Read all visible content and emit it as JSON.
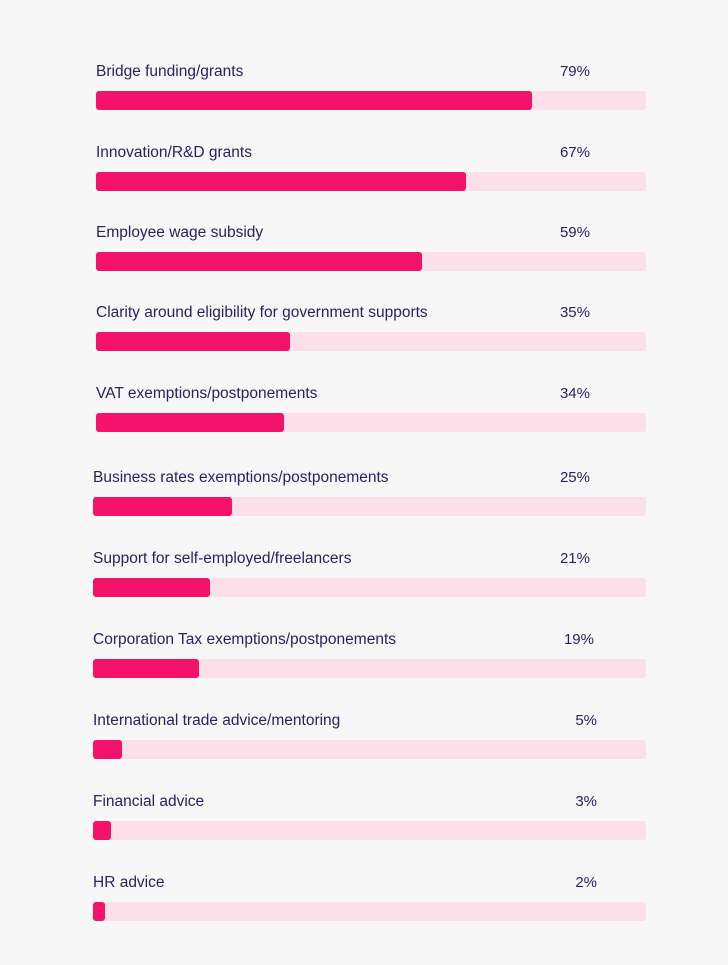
{
  "chart_data": {
    "type": "bar",
    "orientation": "horizontal",
    "title": "",
    "xlabel": "",
    "ylabel": "",
    "xlim": [
      0,
      100
    ],
    "grid": false,
    "legend": "none",
    "colors": {
      "bar": "#f4126b",
      "track": "#fbe0ea",
      "text": "#2a2160",
      "background": "#f7f7f8"
    },
    "categories": [
      "Bridge funding/grants",
      "Innovation/R&D grants",
      "Employee wage subsidy",
      "Clarity around eligibility for government supports",
      "VAT exemptions/postponements",
      "Business rates exemptions/postponements",
      "Support for self-employed/freelancers",
      "Corporation Tax exemptions/postponements",
      "International trade advice/mentoring",
      "Financial advice",
      "HR advice"
    ],
    "values": [
      79,
      67,
      59,
      35,
      34,
      25,
      21,
      19,
      5,
      3,
      2
    ],
    "value_labels": [
      "79%",
      "67%",
      "59%",
      "35%",
      "34%",
      "25%",
      "21%",
      "19%",
      "5%",
      "3%",
      "2%"
    ]
  }
}
